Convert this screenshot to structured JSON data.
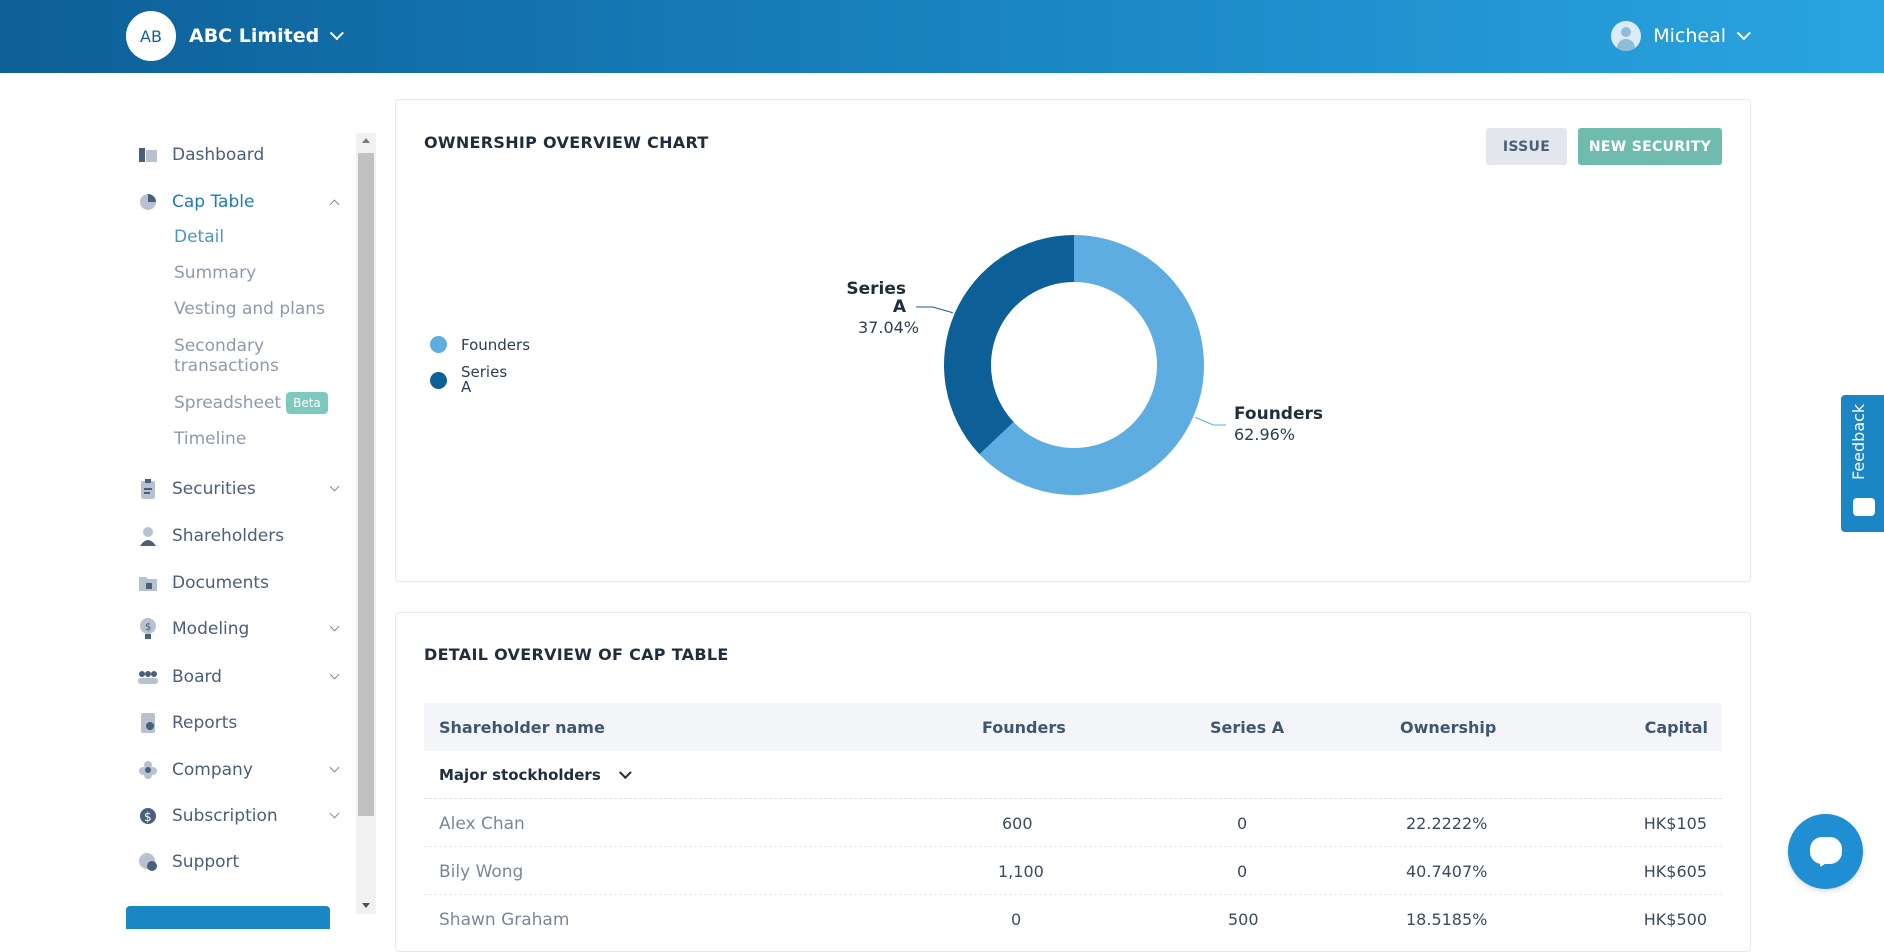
{
  "header": {
    "company_initials": "AB",
    "company_name": "ABC Limited",
    "user_name": "Micheal"
  },
  "sidebar": {
    "items": [
      {
        "label": "Dashboard",
        "icon": "dashboard-icon"
      },
      {
        "label": "Cap Table",
        "icon": "pie-icon",
        "expanded": true
      },
      {
        "label": "Securities",
        "icon": "clipboard-icon"
      },
      {
        "label": "Shareholders",
        "icon": "person-icon"
      },
      {
        "label": "Documents",
        "icon": "folder-lock-icon"
      },
      {
        "label": "Modeling",
        "icon": "bulb-dollar-icon"
      },
      {
        "label": "Board",
        "icon": "group-icon"
      },
      {
        "label": "Reports",
        "icon": "report-icon"
      },
      {
        "label": "Company",
        "icon": "flower-icon"
      },
      {
        "label": "Subscription",
        "icon": "dollar-circle-icon"
      },
      {
        "label": "Support",
        "icon": "support-icon"
      }
    ],
    "cap_table_subitems": [
      {
        "label": "Detail"
      },
      {
        "label": "Summary"
      },
      {
        "label": "Vesting and plans"
      },
      {
        "label": "Secondary transactions"
      },
      {
        "label": "Spreadsheet",
        "badge": "Beta"
      },
      {
        "label": "Timeline"
      }
    ]
  },
  "overview": {
    "title": "OWNERSHIP OVERVIEW CHART",
    "issue_label": "ISSUE",
    "new_security_label": "NEW SECURITY"
  },
  "chart_data": {
    "type": "pie",
    "subtype": "donut",
    "slices": [
      {
        "name": "Founders",
        "value": 62.96,
        "label": "62.96%",
        "color": "#5dade0"
      },
      {
        "name": "Series A",
        "value": 37.04,
        "label": "37.04%",
        "color": "#0d5f97"
      }
    ],
    "legend": [
      "Founders",
      "Series A"
    ],
    "legend_position": "left"
  },
  "detail": {
    "title": "DETAIL OVERVIEW OF CAP TABLE",
    "columns": [
      "Shareholder name",
      "Founders",
      "Series A",
      "Ownership",
      "Capital"
    ],
    "group_label": "Major stockholders",
    "rows": [
      {
        "name": "Alex Chan",
        "founders": "600",
        "series_a": "0",
        "ownership": "22.2222%",
        "capital": "HK$105"
      },
      {
        "name": "Bily Wong",
        "founders": "1,100",
        "series_a": "0",
        "ownership": "40.7407%",
        "capital": "HK$605"
      },
      {
        "name": "Shawn Graham",
        "founders": "0",
        "series_a": "500",
        "ownership": "18.5185%",
        "capital": "HK$500"
      }
    ]
  },
  "widgets": {
    "feedback_label": "Feedback"
  },
  "colors": {
    "header_start": "#0d5f97",
    "header_end": "#2aa5e0",
    "accent": "#1d78b8",
    "new_security": "#6fbcae",
    "founders": "#5dade0",
    "series_a": "#0d5f97"
  }
}
